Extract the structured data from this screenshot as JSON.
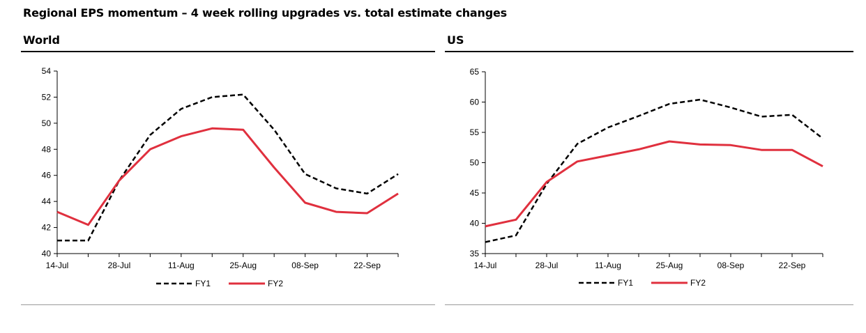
{
  "title": "Regional EPS momentum – 4 week rolling upgrades vs. total estimate changes",
  "colors": {
    "FY1": "#000000",
    "FY2": "#e0303e",
    "axis": "#000000"
  },
  "chart_data": [
    {
      "panel_title": "World",
      "type": "line",
      "x": [
        "14-Jul",
        "21-Jul",
        "28-Jul",
        "04-Aug",
        "11-Aug",
        "18-Aug",
        "25-Aug",
        "01-Sep",
        "08-Sep",
        "15-Sep",
        "22-Sep",
        "29-Sep"
      ],
      "xtick_labels": [
        "14-Jul",
        "28-Jul",
        "11-Aug",
        "25-Aug",
        "08-Sep",
        "22-Sep"
      ],
      "yticks": [
        40,
        42,
        44,
        46,
        48,
        50,
        52,
        54
      ],
      "ylim": [
        40,
        54
      ],
      "series": [
        {
          "name": "FY1",
          "style": "dashed",
          "values": [
            41.0,
            41.0,
            45.6,
            49.1,
            51.1,
            52.0,
            52.2,
            49.5,
            46.1,
            45.0,
            44.6,
            46.1
          ]
        },
        {
          "name": "FY2",
          "style": "solid",
          "values": [
            43.2,
            42.2,
            45.6,
            48.0,
            49.0,
            49.6,
            49.5,
            46.6,
            43.9,
            43.2,
            43.1,
            44.6
          ]
        }
      ],
      "legend": [
        "FY1",
        "FY2"
      ]
    },
    {
      "panel_title": "US",
      "type": "line",
      "x": [
        "14-Jul",
        "21-Jul",
        "28-Jul",
        "04-Aug",
        "11-Aug",
        "18-Aug",
        "25-Aug",
        "01-Sep",
        "08-Sep",
        "15-Sep",
        "22-Sep",
        "29-Sep"
      ],
      "xtick_labels": [
        "14-Jul",
        "28-Jul",
        "11-Aug",
        "25-Aug",
        "08-Sep",
        "22-Sep"
      ],
      "yticks": [
        35,
        40,
        45,
        50,
        55,
        60,
        65
      ],
      "ylim": [
        35,
        65
      ],
      "series": [
        {
          "name": "FY1",
          "style": "dashed",
          "values": [
            36.9,
            38.0,
            46.5,
            53.1,
            55.8,
            57.7,
            59.7,
            60.4,
            59.1,
            57.6,
            57.9,
            54.0
          ]
        },
        {
          "name": "FY2",
          "style": "solid",
          "values": [
            39.5,
            40.6,
            46.8,
            50.2,
            51.2,
            52.2,
            53.5,
            53.0,
            52.9,
            52.1,
            52.1,
            49.4
          ]
        }
      ],
      "legend": [
        "FY1",
        "FY2"
      ]
    }
  ]
}
